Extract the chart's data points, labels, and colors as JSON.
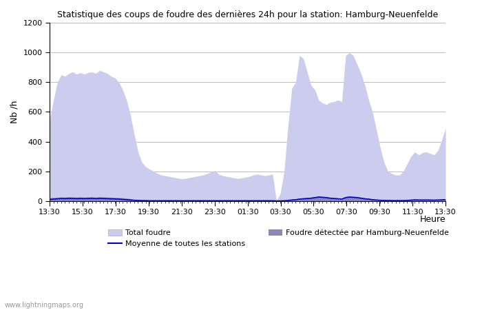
{
  "title": "Statistique des coups de foudre des dernières 24h pour la station: Hamburg-Neuenfelde",
  "xlabel": "Heure",
  "ylabel": "Nb /h",
  "ylim": [
    0,
    1200
  ],
  "yticks": [
    0,
    200,
    400,
    600,
    800,
    1000,
    1200
  ],
  "xtick_labels": [
    "13:30",
    "15:30",
    "17:30",
    "19:30",
    "21:30",
    "23:30",
    "01:30",
    "03:30",
    "05:30",
    "07:30",
    "09:30",
    "11:30",
    "13:30"
  ],
  "watermark": "www.lightningmaps.org",
  "legend_total": "Total foudre",
  "legend_local": "Foudre détectée par Hamburg-Neuenfelde",
  "legend_mean": "Moyenne de toutes les stations",
  "color_total_fill": "#ccccee",
  "color_local_fill": "#8888bb",
  "color_mean_line": "#0000cc",
  "total_foudre": [
    550,
    680,
    800,
    850,
    840,
    860,
    870,
    855,
    865,
    855,
    865,
    870,
    860,
    880,
    870,
    860,
    840,
    830,
    800,
    750,
    680,
    580,
    450,
    330,
    260,
    230,
    215,
    200,
    185,
    175,
    170,
    165,
    160,
    155,
    150,
    150,
    155,
    160,
    165,
    170,
    175,
    185,
    195,
    205,
    180,
    170,
    165,
    160,
    155,
    150,
    155,
    160,
    165,
    175,
    180,
    175,
    170,
    175,
    180,
    0,
    50,
    200,
    500,
    760,
    800,
    980,
    960,
    870,
    780,
    750,
    680,
    660,
    650,
    665,
    670,
    680,
    670,
    980,
    1000,
    980,
    920,
    860,
    780,
    680,
    600,
    480,
    360,
    260,
    200,
    185,
    175,
    175,
    200,
    250,
    300,
    330,
    310,
    325,
    330,
    320,
    310,
    340,
    410,
    490
  ],
  "local_foudre": [
    20,
    22,
    24,
    26,
    25,
    27,
    26,
    25,
    26,
    25,
    26,
    27,
    25,
    27,
    26,
    25,
    24,
    23,
    22,
    20,
    18,
    15,
    10,
    7,
    5,
    4,
    3,
    2,
    2,
    2,
    2,
    2,
    2,
    2,
    2,
    2,
    2,
    2,
    2,
    2,
    2,
    2,
    2,
    2,
    2,
    2,
    2,
    2,
    2,
    2,
    2,
    2,
    2,
    2,
    2,
    2,
    2,
    2,
    2,
    0,
    1,
    2,
    5,
    10,
    12,
    18,
    20,
    22,
    24,
    28,
    32,
    30,
    28,
    24,
    22,
    20,
    18,
    28,
    32,
    30,
    28,
    24,
    20,
    16,
    12,
    8,
    6,
    5,
    4,
    3,
    3,
    3,
    3,
    5,
    8,
    10,
    8,
    8,
    8,
    8,
    6,
    8,
    10,
    12
  ],
  "mean_line": [
    10,
    12,
    14,
    16,
    15,
    17,
    16,
    15,
    16,
    15,
    16,
    17,
    15,
    17,
    16,
    15,
    14,
    13,
    12,
    10,
    8,
    6,
    4,
    3,
    2,
    2,
    1,
    1,
    1,
    1,
    1,
    1,
    1,
    1,
    1,
    1,
    1,
    1,
    1,
    1,
    1,
    1,
    1,
    1,
    1,
    1,
    1,
    1,
    1,
    1,
    1,
    1,
    1,
    1,
    1,
    1,
    1,
    1,
    1,
    0,
    0,
    1,
    3,
    6,
    8,
    12,
    14,
    16,
    18,
    22,
    26,
    24,
    22,
    18,
    16,
    14,
    12,
    22,
    26,
    24,
    22,
    18,
    14,
    12,
    8,
    6,
    4,
    3,
    3,
    2,
    2,
    2,
    2,
    3,
    5,
    7,
    6,
    6,
    6,
    6,
    5,
    6,
    7,
    8
  ]
}
